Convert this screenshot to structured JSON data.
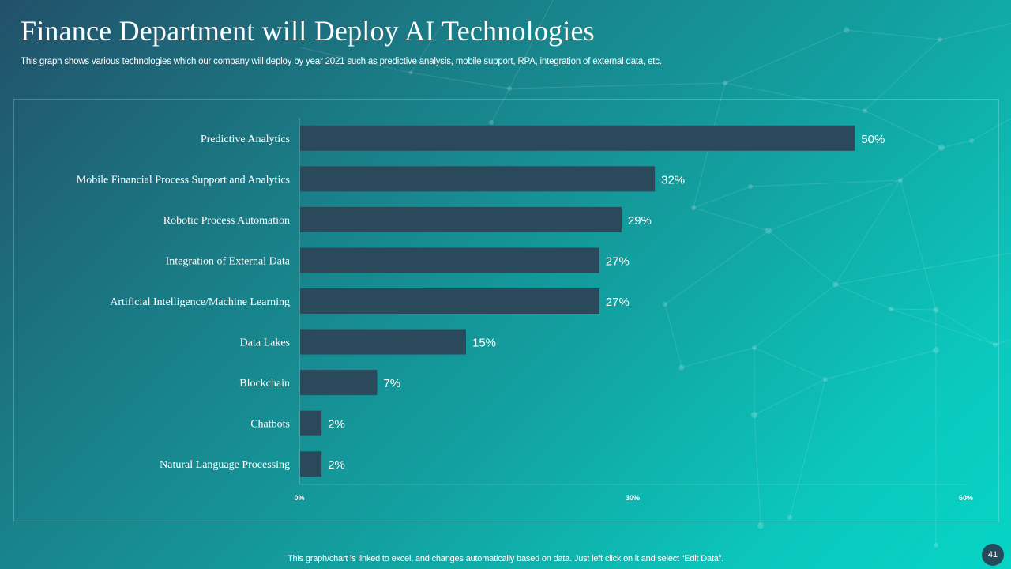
{
  "slide": {
    "title": "Finance Department will Deploy AI Technologies",
    "subtitle": "This graph shows various technologies which our company will deploy by year 2021 such as predictive analysis, mobile support, RPA, integration of external data, etc.",
    "footer_note": "This graph/chart is linked to excel,  and changes automatically based on data. Just left click on it and select “Edit Data”.",
    "page_number": "41"
  },
  "colors": {
    "bar": "#2a4a5c",
    "text": "#ffffff",
    "badge": "#244a5c"
  },
  "chart_data": {
    "type": "bar",
    "orientation": "horizontal",
    "title": "",
    "xlabel": "",
    "ylabel": "",
    "categories": [
      "Predictive Analytics",
      "Mobile Financial Process Support and Analytics",
      "Robotic Process Automation",
      "Integration of External Data",
      "Artificial Intelligence/Machine Learning",
      "Data Lakes",
      "Blockchain",
      "Chatbots",
      "Natural Language Processing"
    ],
    "values": [
      50,
      32,
      29,
      27,
      27,
      15,
      7,
      2,
      2
    ],
    "value_labels": [
      "50%",
      "32%",
      "29%",
      "27%",
      "27%",
      "15%",
      "7%",
      "2%",
      "2%"
    ],
    "xlim": [
      0,
      60
    ],
    "xticks": [
      0,
      30,
      60
    ],
    "xtick_labels": [
      "0%",
      "30%",
      "60%"
    ],
    "grid": false,
    "legend": "none"
  }
}
